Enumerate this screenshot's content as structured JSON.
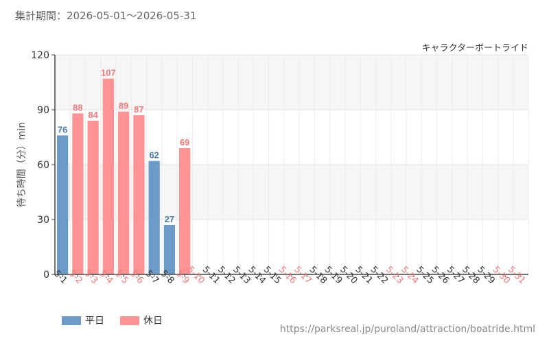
{
  "period_label": "集計期間：2026-05-01～2026-05-31",
  "source_url": "https://parksreal.jp/puroland/attraction/boatride.html",
  "colors": {
    "weekday": "#6b9bc8",
    "holiday": "#ff9393",
    "weekday_label": "#4a79a5",
    "holiday_label": "#f07a7a"
  },
  "legend": [
    {
      "label": "平日",
      "key": "weekday"
    },
    {
      "label": "休日",
      "key": "holiday"
    }
  ],
  "chart_data": {
    "type": "bar",
    "title": "キャラクターボートライド",
    "ylabel": "待ち時間（分）min",
    "ylim": [
      0,
      120
    ],
    "yticks": [
      0,
      30,
      60,
      90,
      120
    ],
    "grid": true,
    "categories": [
      "5-1",
      "5-2",
      "5-3",
      "5-4",
      "5-5",
      "5-6",
      "5-7",
      "5-8",
      "5-9",
      "5-10",
      "5-11",
      "5-12",
      "5-13",
      "5-14",
      "5-15",
      "5-16",
      "5-17",
      "5-18",
      "5-19",
      "5-20",
      "5-21",
      "5-22",
      "5-23",
      "5-24",
      "5-25",
      "5-26",
      "5-27",
      "5-28",
      "5-29",
      "5-30",
      "5-31"
    ],
    "day_types": [
      "weekday",
      "holiday",
      "holiday",
      "holiday",
      "holiday",
      "holiday",
      "weekday",
      "weekday",
      "holiday",
      "holiday",
      "weekday",
      "weekday",
      "weekday",
      "weekday",
      "weekday",
      "holiday",
      "holiday",
      "weekday",
      "weekday",
      "weekday",
      "weekday",
      "weekday",
      "holiday",
      "holiday",
      "weekday",
      "weekday",
      "weekday",
      "weekday",
      "weekday",
      "holiday",
      "holiday"
    ],
    "values": [
      76,
      88,
      84,
      107,
      89,
      87,
      62,
      27,
      69,
      null,
      null,
      null,
      null,
      null,
      null,
      null,
      null,
      null,
      null,
      null,
      null,
      null,
      null,
      null,
      null,
      null,
      null,
      null,
      null,
      null,
      null
    ]
  }
}
